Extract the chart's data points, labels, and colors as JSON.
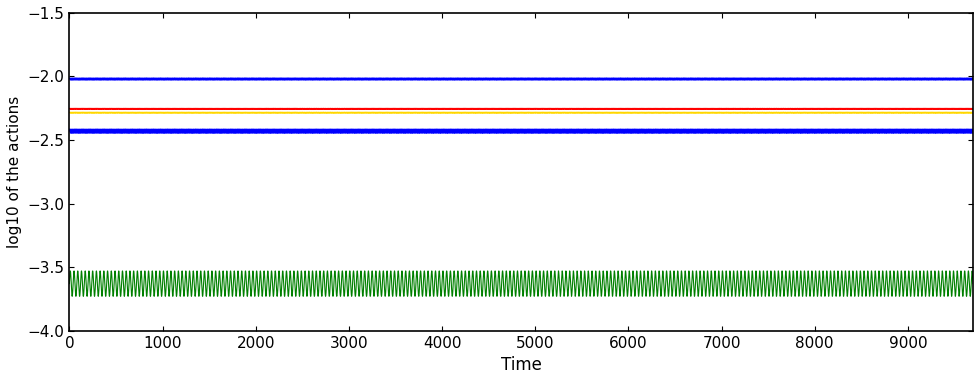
{
  "title": "",
  "xlabel": "Time",
  "ylabel": "log10 of the actions",
  "xlim": [
    0,
    9700
  ],
  "ylim": [
    -4,
    -1.5
  ],
  "yticks": [
    -4,
    -3.5,
    -3,
    -2.5,
    -2,
    -1.5
  ],
  "xticks": [
    0,
    1000,
    2000,
    3000,
    4000,
    5000,
    6000,
    7000,
    8000,
    9000
  ],
  "n_points": 9700,
  "lines": [
    {
      "color": "#0000ff",
      "mean": -2.02,
      "amplitude": 0.01,
      "freq_factor": 8.0,
      "linewidth": 0.6
    },
    {
      "color": "#ff0000",
      "mean": -2.255,
      "amplitude": 0.006,
      "freq_factor": 8.0,
      "linewidth": 0.6
    },
    {
      "color": "#ffd700",
      "mean": -2.285,
      "amplitude": 0.006,
      "freq_factor": 8.0,
      "linewidth": 0.6
    },
    {
      "color": "#0000ff",
      "mean": -2.43,
      "amplitude": 0.018,
      "freq_factor": 8.0,
      "linewidth": 0.6
    },
    {
      "color": "#008000",
      "mean": -3.63,
      "amplitude": 0.1,
      "freq_factor": 2.5,
      "linewidth": 0.8
    }
  ],
  "background_color": "#ffffff",
  "axes_color": "#000000",
  "figsize": [
    9.8,
    3.81
  ],
  "dpi": 100
}
